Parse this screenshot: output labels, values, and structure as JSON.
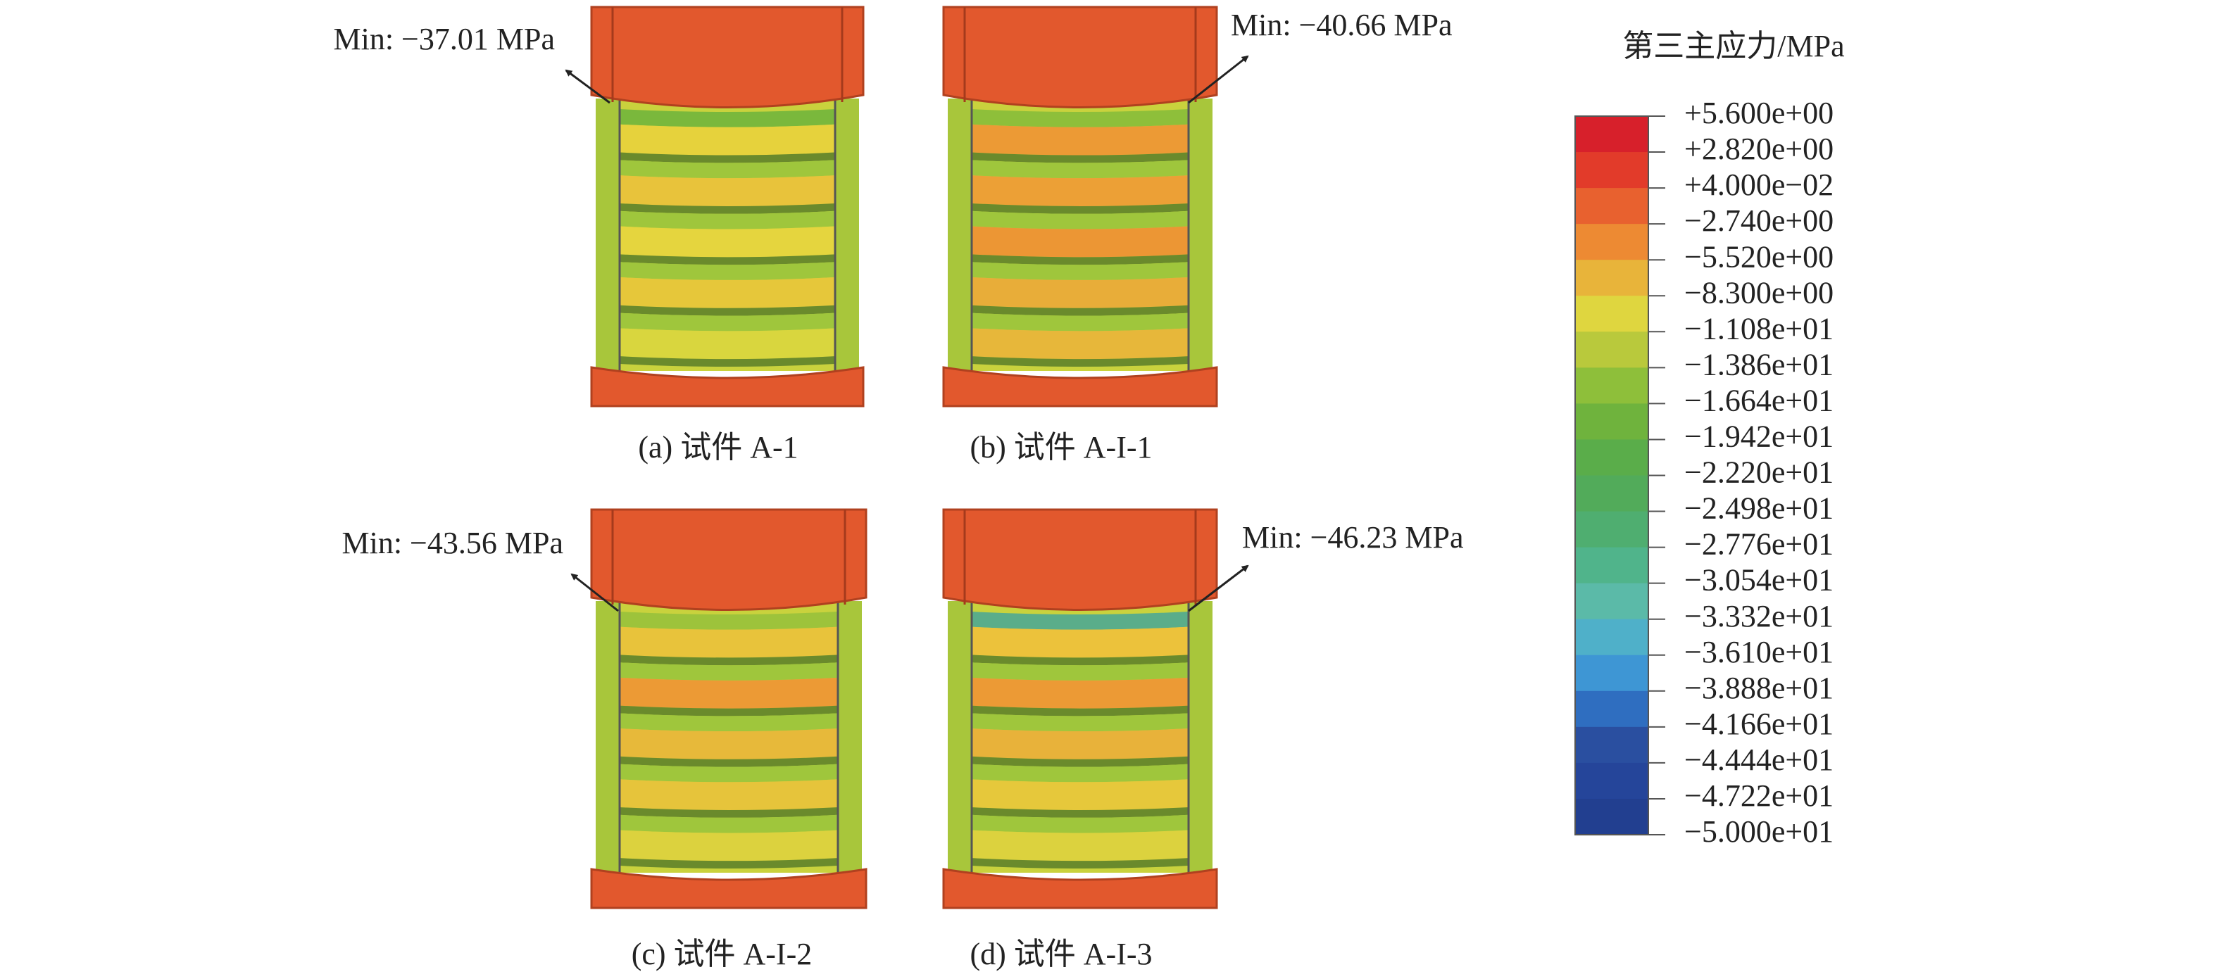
{
  "panels": [
    {
      "caption": "(a) 试件 A-1",
      "min_label": "Min: −37.01 MPa"
    },
    {
      "caption": "(b) 试件 A-I-1",
      "min_label": "Min: −40.66 MPa"
    },
    {
      "caption": "(c) 试件 A-I-2",
      "min_label": "Min: −43.56 MPa"
    },
    {
      "caption": "(d) 试件 A-I-3",
      "min_label": "Min: −46.23 MPa"
    }
  ],
  "legend": {
    "title": "第三主应力/MPa",
    "levels": [
      "+5.600e+00",
      "+2.820e+00",
      "+4.000e−02",
      "−2.740e+00",
      "−5.520e+00",
      "−8.300e+00",
      "−1.108e+01",
      "−1.386e+01",
      "−1.664e+01",
      "−1.942e+01",
      "−2.220e+01",
      "−2.498e+01",
      "−2.776e+01",
      "−3.054e+01",
      "−3.332e+01",
      "−3.610e+01",
      "−3.888e+01",
      "−4.166e+01",
      "−4.444e+01",
      "−4.722e+01",
      "−5.000e+01"
    ],
    "colors": [
      "#d7202b",
      "#e23b2a",
      "#e8612f",
      "#ed8a33",
      "#e8b43a",
      "#dfd63f",
      "#b9c93c",
      "#8ebf3a",
      "#6fb33d",
      "#5aad4a",
      "#52ab5a",
      "#4fae70",
      "#50b48b",
      "#5bbaa8",
      "#4fb0c9",
      "#3e96d4",
      "#2f6ec0",
      "#2a4fa0",
      "#25459a",
      "#223f90"
    ]
  }
}
